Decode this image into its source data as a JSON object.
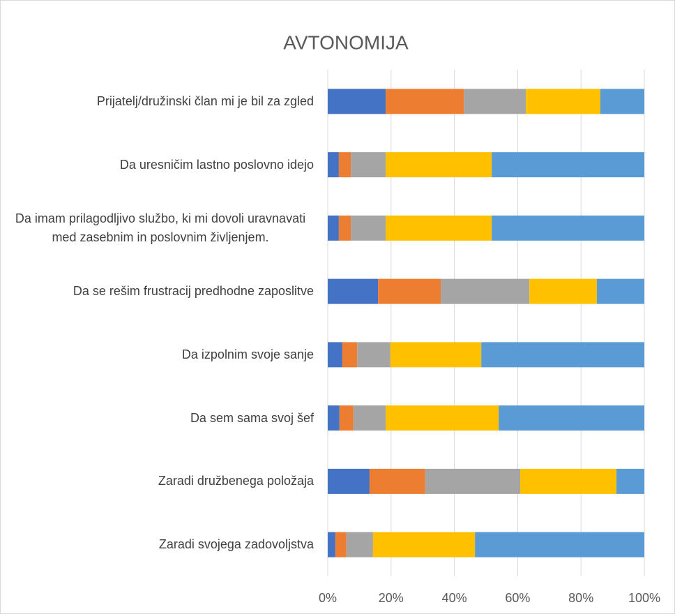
{
  "chart_data": {
    "type": "stacked_bar_horizontal",
    "title": "AVTONOMIJA",
    "categories": [
      "Prijatelj/družinski član mi je bil za zgled",
      "Da uresničim lastno poslovno idejo",
      "Da imam prilagodljivo službo, ki mi dovoli uravnavati med zasebnim in poslovnim življenjem.",
      "Da se rešim frustracij predhodne zaposlitve",
      "Da izpolnim svoje sanje",
      "Da sem sama svoj šef",
      "Zaradi družbenega položaja",
      "Zaradi svojega zadovoljstva"
    ],
    "series": [
      {
        "color": "#4472c4",
        "values": [
          18.3,
          3.5,
          3.5,
          15.9,
          4.6,
          3.7,
          13.2,
          2.4
        ]
      },
      {
        "color": "#ed7d31",
        "values": [
          24.7,
          3.8,
          3.8,
          19.8,
          4.7,
          4.4,
          17.6,
          3.5
        ]
      },
      {
        "color": "#a5a5a5",
        "values": [
          19.6,
          11,
          11,
          28,
          10.5,
          10.2,
          30,
          8.4
        ]
      },
      {
        "color": "#ffc000",
        "values": [
          23.5,
          33.5,
          33.5,
          21.3,
          28.7,
          35.7,
          30.4,
          32.2
        ]
      },
      {
        "color": "#5b9bd5",
        "values": [
          13.9,
          48.2,
          48.2,
          15,
          51.5,
          46,
          8.8,
          53.5
        ]
      }
    ],
    "xlim": [
      0,
      100
    ],
    "xticks": [
      {
        "value": 0,
        "label": "0%"
      },
      {
        "value": 20,
        "label": "20%"
      },
      {
        "value": 40,
        "label": "40%"
      },
      {
        "value": 60,
        "label": "60%"
      },
      {
        "value": 80,
        "label": "80%"
      },
      {
        "value": 100,
        "label": "100%"
      }
    ],
    "grid": true
  }
}
